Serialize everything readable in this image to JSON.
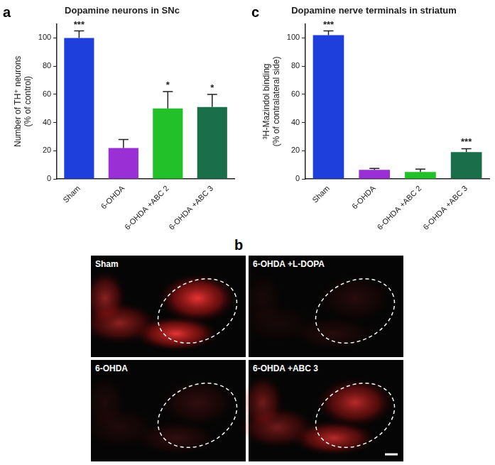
{
  "chart_data": [
    {
      "panel": "a",
      "type": "bar",
      "title": "Dopamine neurons in SNc",
      "ylabel": [
        "Number of TH⁺ neurons",
        "(% of control)"
      ],
      "categories": [
        "Sham",
        "6-OHDA",
        "6-OHDA +ABC 2",
        "6-OHDA +ABC 3"
      ],
      "values": [
        100,
        22,
        50,
        51
      ],
      "errors": [
        5,
        6,
        12,
        9
      ],
      "annotations": [
        "***",
        null,
        "*",
        "*"
      ],
      "colors": [
        "#1f3fdc",
        "#9b2fd6",
        "#22c12a",
        "#1a6e4a"
      ],
      "ylim": [
        0,
        110
      ],
      "yticks": [
        0,
        20,
        40,
        60,
        80,
        100
      ],
      "grid": false
    },
    {
      "panel": "c",
      "type": "bar",
      "title": "Dopamine nerve terminals in striatum",
      "ylabel": [
        "³H-Mazindol binding",
        "(% of contralateral side)"
      ],
      "categories": [
        "Sham",
        "6-OHDA",
        "6-OHDA +ABC 2",
        "6-OHDA +ABC 3"
      ],
      "values": [
        102,
        6.5,
        5,
        19
      ],
      "errors": [
        3,
        1,
        2,
        2.5
      ],
      "annotations": [
        "***",
        null,
        null,
        "***"
      ],
      "colors": [
        "#1f3fdc",
        "#9b2fd6",
        "#22c12a",
        "#1a6e4a"
      ],
      "ylim": [
        0,
        110
      ],
      "yticks": [
        0,
        20,
        40,
        60,
        80,
        100
      ],
      "grid": false
    }
  ],
  "image_panel": {
    "panel": "b",
    "labels": [
      "Sham",
      "6-OHDA +L-DOPA",
      "6-OHDA",
      "6-OHDA +ABC 3"
    ]
  }
}
